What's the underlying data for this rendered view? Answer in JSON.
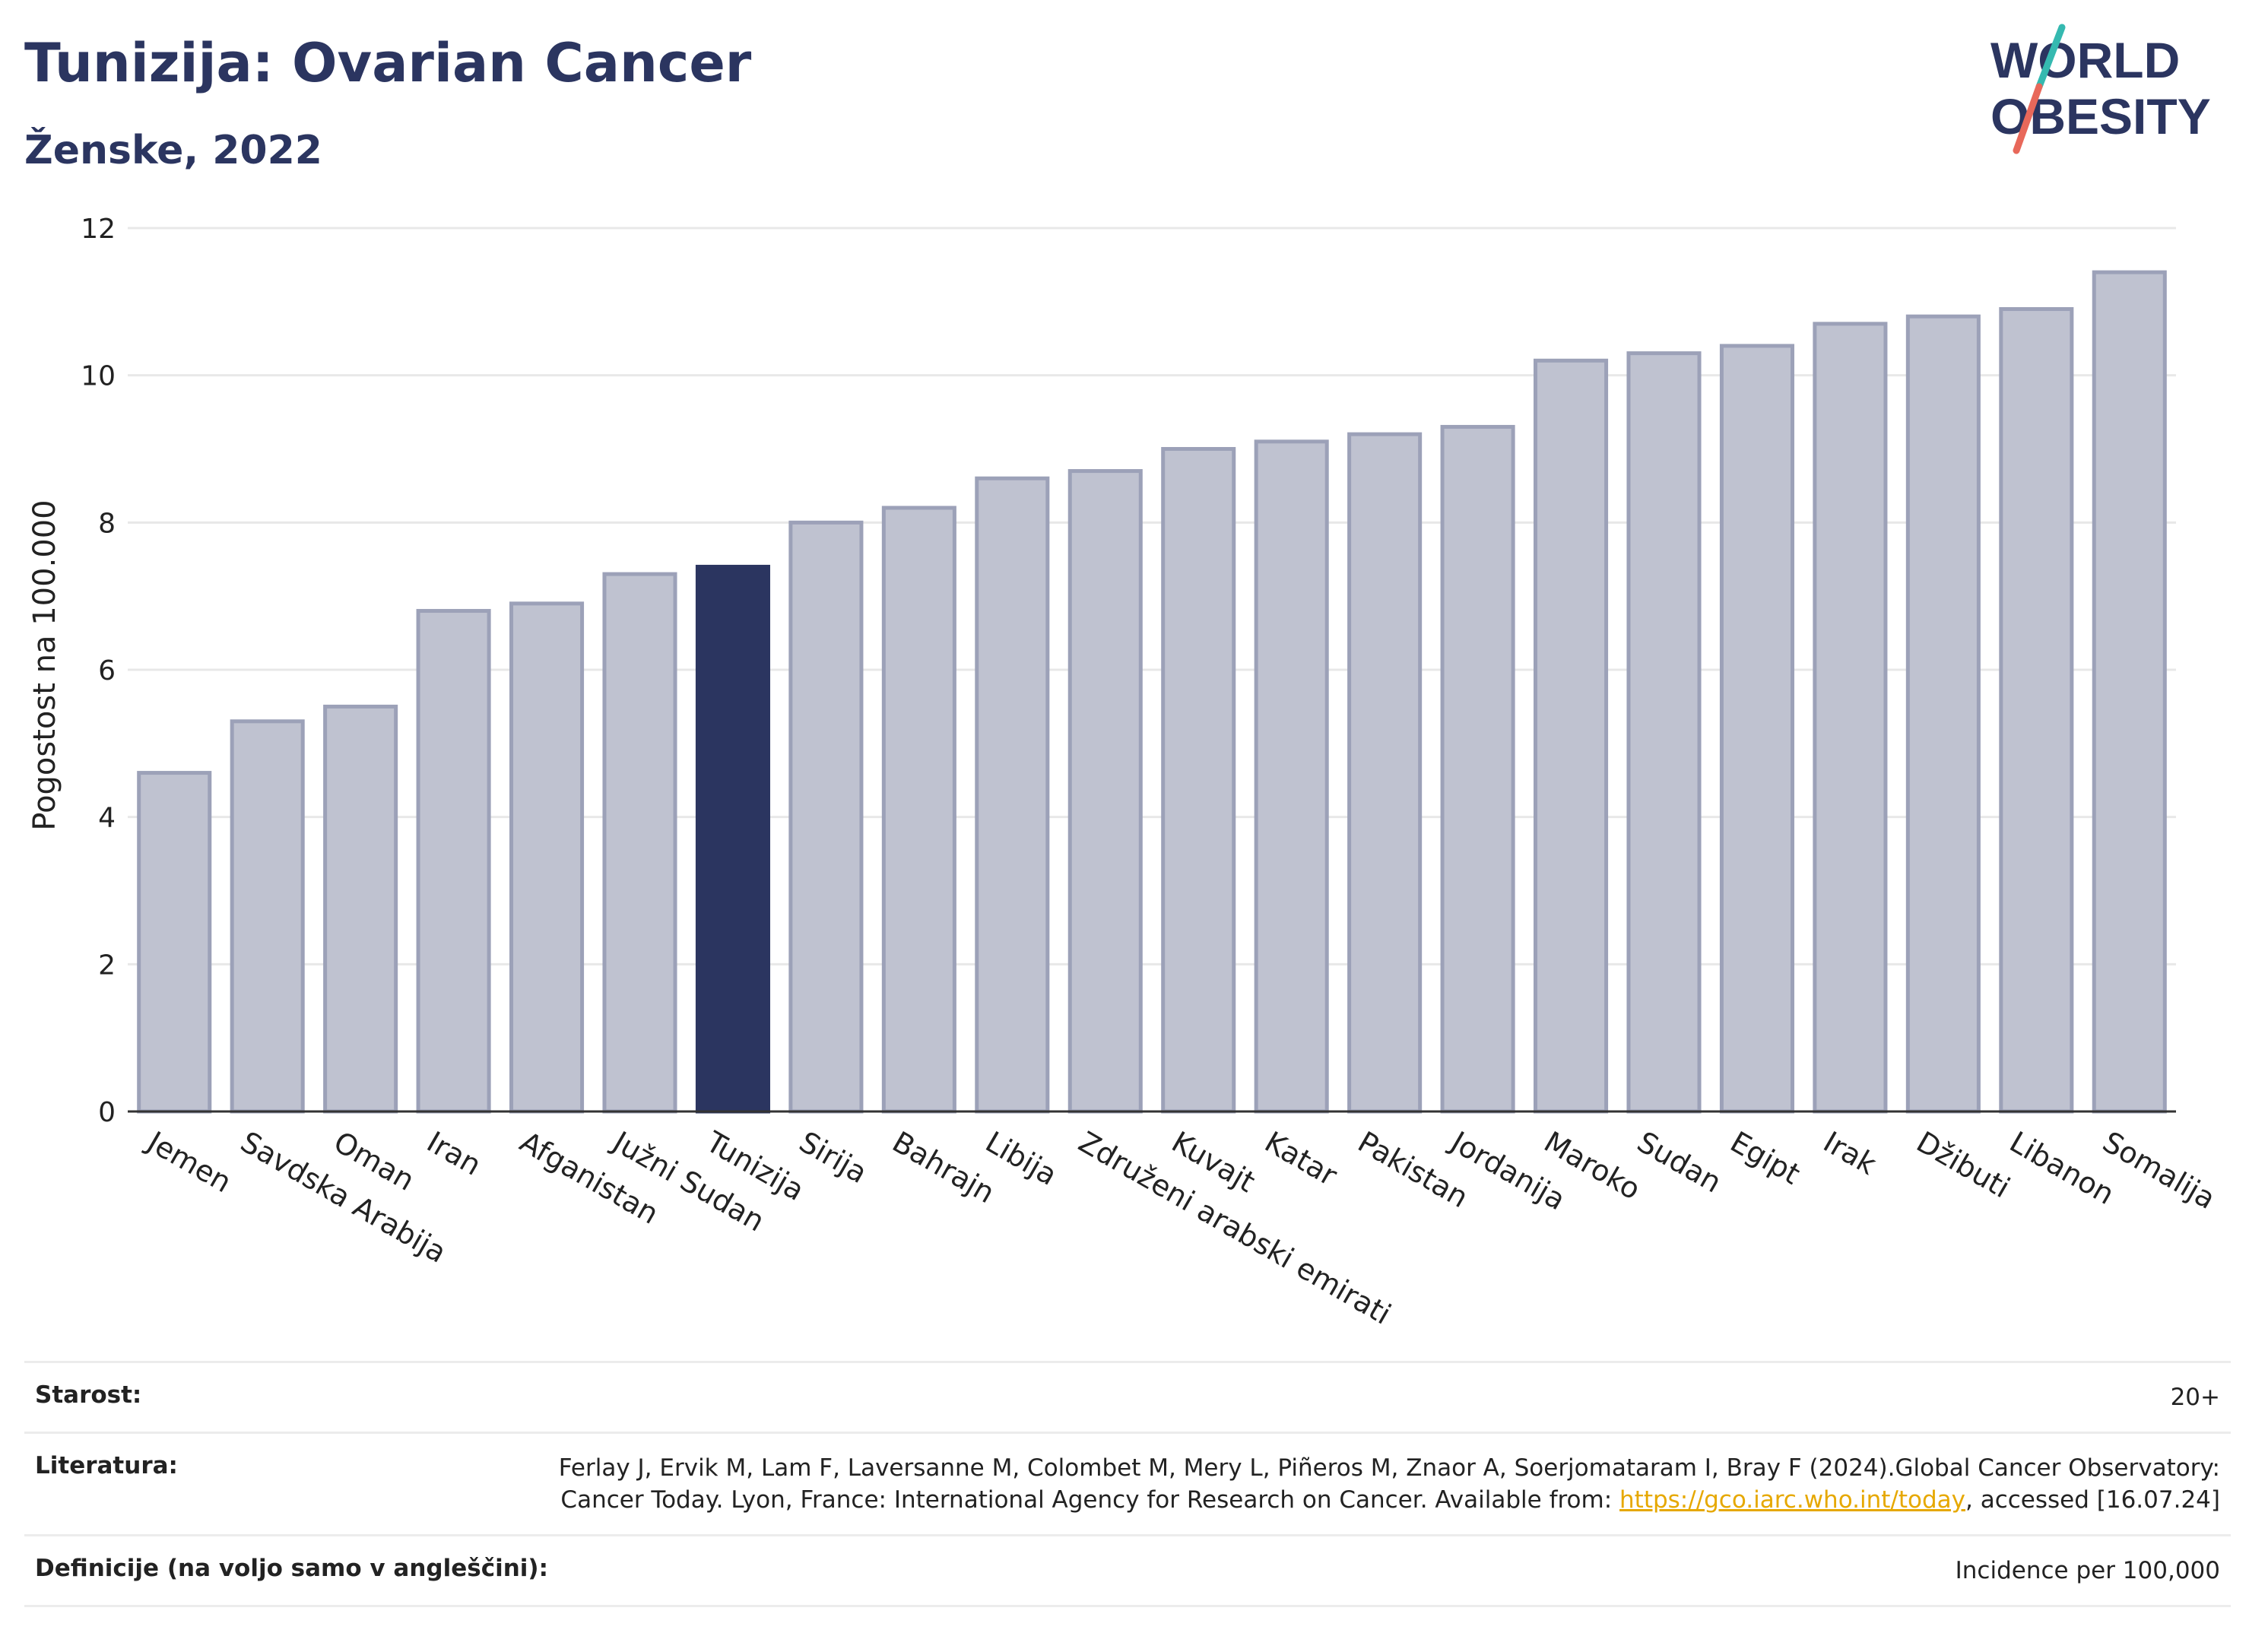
{
  "header": {
    "title": "Tunizija: Ovarian Cancer",
    "subtitle": "Ženske, 2022"
  },
  "logo": {
    "line1": "WORLD",
    "line2": "OBESITY",
    "colors": {
      "text": "#2b3560",
      "teal": "#35b9b0",
      "coral": "#e8685a"
    }
  },
  "chart_data": {
    "type": "bar",
    "ylabel": "Pogostost na 100.000",
    "ylim": [
      0,
      12
    ],
    "yticks": [
      0,
      2,
      4,
      6,
      8,
      10,
      12
    ],
    "grid": true,
    "highlight": "Tunizija",
    "colors": {
      "bar": "#bfc2d0",
      "bar_edge": "#9ca1b8",
      "highlight": "#2b3560",
      "axis": "#333333",
      "grid": "#e8e8e8"
    },
    "categories": [
      "Jemen",
      "Savdska Arabija",
      "Oman",
      "Iran",
      "Afganistan",
      "Južni Sudan",
      "Tunizija",
      "Sirija",
      "Bahrajn",
      "Libija",
      "Združeni arabski emirati",
      "Kuvajt",
      "Katar",
      "Pakistan",
      "Jordanija",
      "Maroko",
      "Sudan",
      "Egipt",
      "Irak",
      "Džibuti",
      "Libanon",
      "Somalija"
    ],
    "values": [
      4.6,
      5.3,
      5.5,
      6.8,
      6.9,
      7.3,
      7.4,
      8.0,
      8.2,
      8.6,
      8.7,
      9.0,
      9.1,
      9.2,
      9.3,
      10.2,
      10.3,
      10.4,
      10.7,
      10.8,
      10.9,
      11.4
    ]
  },
  "footer": {
    "age_label": "Starost:",
    "age_value": "20+",
    "ref_label": "Literatura:",
    "ref_text_1": "Ferlay J, Ervik M, Lam F, Laversanne M, Colombet M, Mery L, Piñeros M, Znaor A, Soerjomataram I, Bray F (2024).Global Cancer Observatory: Cancer Today. Lyon, France: International Agency for Research on Cancer. Available from: ",
    "ref_link": "https://gco.iarc.who.int/today",
    "ref_text_2": ", accessed [16.07.24]",
    "def_label": "Definicije (na voljo samo v angleščini):",
    "def_value": "Incidence per 100,000"
  }
}
